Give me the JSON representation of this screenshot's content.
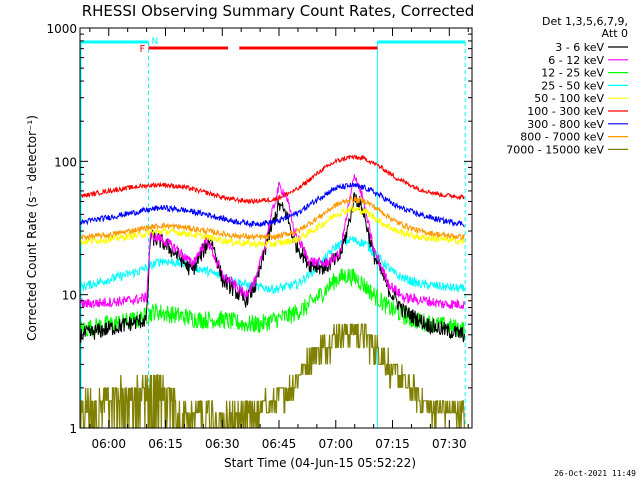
{
  "chart_data": {
    "type": "line",
    "title": "RHESSI Observing Summary Count Rates, Corrected",
    "xlabel": "Start Time (04-Jun-15 05:52:22)",
    "ylabel": "Corrected Count Rate (s⁻¹ detector⁻¹)",
    "yscale": "log",
    "ylim": [
      1,
      1000
    ],
    "xlim_minutes_from_0600": [
      -7.6,
      96
    ],
    "x_ticks": [
      {
        "label": "06:00",
        "t": 0
      },
      {
        "label": "06:15",
        "t": 15
      },
      {
        "label": "06:30",
        "t": 30
      },
      {
        "label": "06:45",
        "t": 45
      },
      {
        "label": "07:00",
        "t": 60
      },
      {
        "label": "07:15",
        "t": 75
      },
      {
        "label": "07:30",
        "t": 90
      }
    ],
    "y_ticks": [
      {
        "label": "1",
        "v": 1
      },
      {
        "label": "10",
        "v": 10
      },
      {
        "label": "100",
        "v": 100
      },
      {
        "label": "1000",
        "v": 1000
      }
    ],
    "legend_header": [
      "Det 1,3,5,6,7,9,",
      "Att 0"
    ],
    "series": [
      {
        "name": "3 - 6 keV",
        "color": "#000000",
        "t": [
          -7,
          5,
          10,
          11,
          14,
          18,
          22,
          27,
          30,
          33,
          36,
          39,
          42,
          45,
          47,
          49,
          53,
          57,
          61,
          63,
          65,
          67,
          70,
          74,
          78,
          84,
          88,
          94
        ],
        "v": [
          5,
          6,
          6.5,
          27,
          25,
          20,
          15,
          27,
          13,
          11,
          9,
          12,
          26,
          47,
          40,
          25,
          17,
          16,
          19,
          30,
          55,
          45,
          20,
          11,
          7.5,
          6,
          5.5,
          5
        ]
      },
      {
        "name": "6 - 12 keV",
        "color": "#ff00ff",
        "t": [
          -7,
          5,
          10,
          11,
          14,
          18,
          22,
          26,
          30,
          33,
          36,
          39,
          42,
          45,
          47,
          49,
          53,
          57,
          61,
          63,
          65,
          67,
          70,
          74,
          78,
          84,
          88,
          94
        ],
        "v": [
          8.5,
          9,
          9.5,
          28,
          26,
          22,
          17,
          26,
          14,
          12,
          10,
          13,
          30,
          65,
          55,
          30,
          18,
          17,
          20,
          40,
          80,
          55,
          22,
          12,
          9.5,
          9,
          8.5,
          8.5
        ]
      },
      {
        "name": "12 - 25 keV",
        "color": "#00ff00",
        "t": [
          -7,
          0,
          8,
          12,
          18,
          24,
          30,
          36,
          40,
          44,
          48,
          52,
          56,
          60,
          63,
          66,
          70,
          74,
          80,
          86,
          94
        ],
        "v": [
          5.5,
          6,
          6.5,
          7.5,
          7,
          6.5,
          6.5,
          6,
          6,
          6.5,
          7,
          8,
          10,
          13,
          14,
          13,
          10,
          8,
          6.5,
          6,
          5.5
        ]
      },
      {
        "name": "25 - 50 keV",
        "color": "#00ffff",
        "t": [
          -7,
          0,
          8,
          14,
          20,
          26,
          32,
          38,
          44,
          50,
          56,
          60,
          64,
          68,
          72,
          76,
          82,
          88,
          94
        ],
        "v": [
          11.5,
          13,
          15,
          18,
          17,
          15,
          13,
          11.5,
          11,
          12,
          17,
          23,
          26,
          24,
          18,
          14,
          12,
          11.5,
          11
        ]
      },
      {
        "name": "50 - 100 keV",
        "color": "#ffff00",
        "t": [
          -7,
          0,
          8,
          14,
          20,
          26,
          32,
          38,
          44,
          50,
          56,
          60,
          64,
          68,
          72,
          76,
          82,
          88,
          94
        ],
        "v": [
          25,
          26,
          28,
          30,
          29,
          27,
          25,
          24,
          24,
          26,
          33,
          40,
          44,
          42,
          35,
          30,
          27,
          26,
          25
        ]
      },
      {
        "name": "100 - 300 keV",
        "color": "#ff0000",
        "t": [
          -7,
          0,
          8,
          14,
          20,
          26,
          32,
          38,
          44,
          50,
          56,
          60,
          64,
          68,
          72,
          76,
          82,
          88,
          94
        ],
        "v": [
          55,
          60,
          65,
          67,
          64,
          58,
          52,
          50,
          52,
          62,
          85,
          100,
          108,
          104,
          90,
          75,
          62,
          56,
          54
        ]
      },
      {
        "name": "300 - 800 keV",
        "color": "#0000ff",
        "t": [
          -7,
          0,
          8,
          14,
          20,
          26,
          32,
          38,
          44,
          50,
          56,
          60,
          64,
          68,
          72,
          76,
          82,
          88,
          94
        ],
        "v": [
          35,
          38,
          42,
          45,
          43,
          40,
          36,
          34,
          35,
          41,
          54,
          63,
          66,
          63,
          55,
          46,
          40,
          36,
          34
        ]
      },
      {
        "name": "800 - 7000 keV",
        "color": "#ff9900",
        "t": [
          -7,
          0,
          8,
          14,
          20,
          26,
          32,
          38,
          44,
          50,
          56,
          60,
          64,
          68,
          72,
          76,
          82,
          88,
          94
        ],
        "v": [
          27,
          28,
          31,
          33,
          32,
          30,
          28,
          27,
          27,
          30,
          39,
          47,
          52,
          50,
          42,
          35,
          30,
          28,
          27
        ]
      },
      {
        "name": "7000 - 15000 keV",
        "color": "#808000",
        "t": [
          -7,
          5,
          10,
          12,
          15,
          19,
          24,
          30,
          36,
          42,
          48,
          52,
          56,
          60,
          64,
          68,
          72,
          76,
          80,
          84,
          88,
          94
        ],
        "v": [
          1.5,
          2,
          2,
          2.5,
          1.7,
          1.4,
          1.4,
          1.3,
          1.3,
          1.5,
          2,
          3,
          4,
          5,
          5.5,
          5,
          3.5,
          2.5,
          2,
          1.5,
          1.4,
          1.3
        ]
      }
    ],
    "annotations": [
      {
        "text": "F",
        "color": "#ff0000"
      },
      {
        "text": "N",
        "color": "#00ffff"
      }
    ],
    "night_intervals": [
      [
        -7.6,
        10.5
      ],
      [
        71,
        94.2
      ]
    ],
    "flare_intervals": [
      [
        10.5,
        31.5
      ],
      [
        34.5,
        71
      ]
    ],
    "footer_date": "26-Oct-2021 11:49"
  }
}
